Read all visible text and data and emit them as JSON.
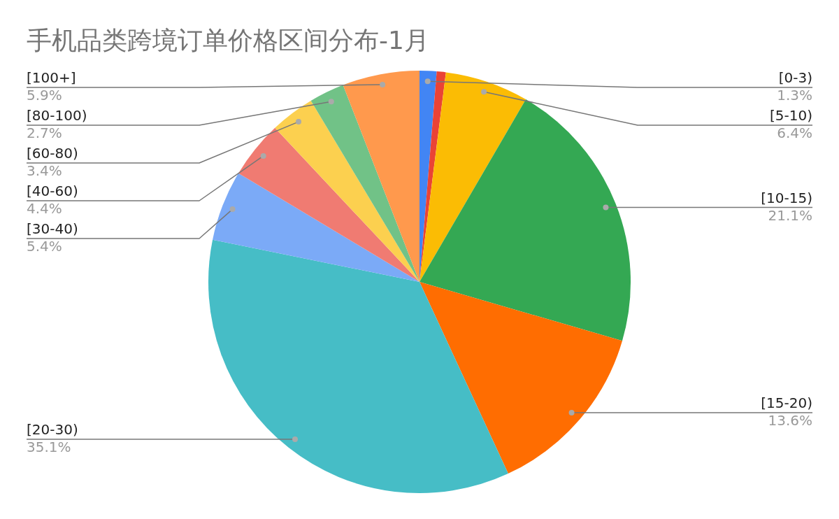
{
  "chart_data": {
    "type": "pie",
    "title": "手机品类跨境订单价格区间分布-1月",
    "categories": [
      "[0-3)",
      null,
      "[5-10)",
      "[10-15)",
      "[15-20)",
      "[20-30)",
      "[30-40)",
      "[40-60)",
      "[60-80)",
      "[80-100)",
      "[100+]"
    ],
    "values": [
      1.3,
      0.7,
      6.4,
      21.1,
      13.6,
      35.1,
      5.4,
      4.4,
      3.4,
      2.7,
      5.9
    ],
    "value_labels": [
      "1.3%",
      null,
      "6.4%",
      "21.1%",
      "13.6%",
      "35.1%",
      "5.4%",
      "4.4%",
      "3.4%",
      "2.7%",
      "5.9%"
    ],
    "colors": [
      "#4285f4",
      "#ea4335",
      "#fbbc04",
      "#34a853",
      "#ff6d01",
      "#46bdc6",
      "#7baaf7",
      "#f07b72",
      "#fcd04f",
      "#71c287",
      "#ff994d"
    ],
    "legend": false
  }
}
